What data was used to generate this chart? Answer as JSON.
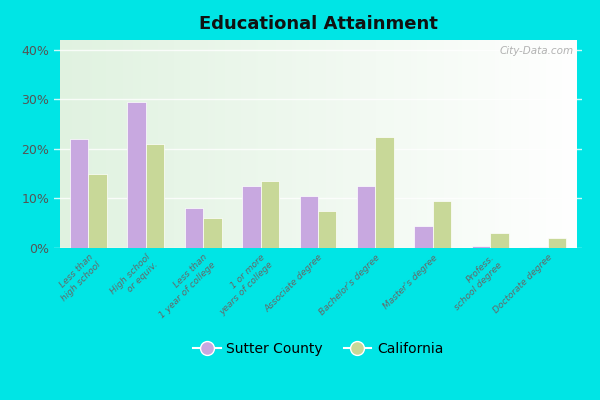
{
  "title": "Educational Attainment",
  "categories": [
    "Less than\nhigh school",
    "High school\nor equiv.",
    "Less than\n1 year of college",
    "1 or more\nyears of college",
    "Associate degree",
    "Bachelor's degree",
    "Master's degree",
    "Profess.\nschool degree",
    "Doctorate degree"
  ],
  "sutter_county": [
    22,
    29.5,
    8,
    12.5,
    10.5,
    12.5,
    4.5,
    0.5,
    0.2
  ],
  "california": [
    15,
    21,
    6,
    13.5,
    7.5,
    22.5,
    9.5,
    3,
    2
  ],
  "sutter_color": "#c8a8e0",
  "california_color": "#c8d898",
  "ylim": [
    0,
    42
  ],
  "yticks": [
    0,
    10,
    20,
    30,
    40
  ],
  "ytick_labels": [
    "0%",
    "10%",
    "20%",
    "30%",
    "40%"
  ],
  "outer_bg": "#00e5e5",
  "watermark": "City-Data.com",
  "legend_labels": [
    "Sutter County",
    "California"
  ]
}
